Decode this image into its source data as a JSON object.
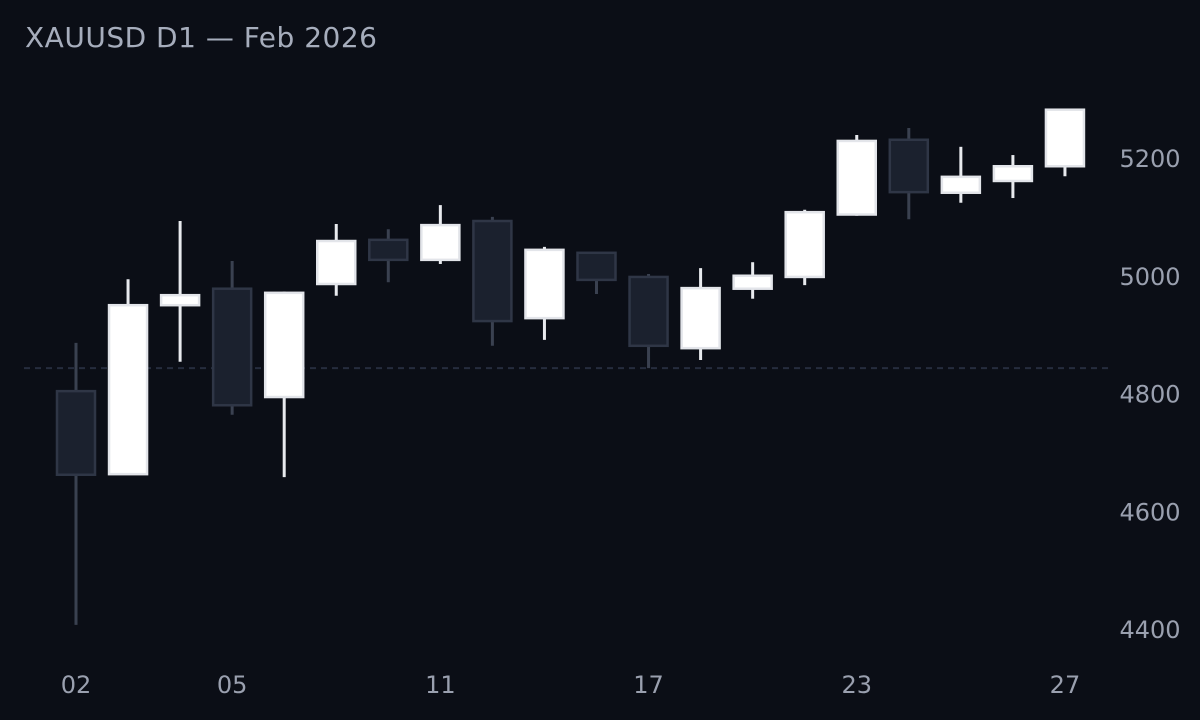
{
  "header": {
    "title": "XAUUSD D1 — Feb 2026"
  },
  "colors": {
    "background": "#0b0e16",
    "title_text": "#a6adbc",
    "axis_text": "#9aa0af",
    "bull_fill": "#ffffff",
    "bull_stroke": "#e3e5ea",
    "bull_wick": "#e8eaee",
    "bear_fill": "#1b212e",
    "bear_stroke": "#2f3646",
    "bear_wick": "#3a4150",
    "reference_line": "#262d3e"
  },
  "chart_data": {
    "type": "candlestick",
    "title": "XAUUSD D1 — Feb 2026",
    "symbol": "XAUUSD",
    "timeframe": "D1",
    "period": "Feb 2026",
    "grid": false,
    "y_axis_side": "right",
    "ylim": [
      4380,
      5320
    ],
    "y_ticks": [
      5200,
      5000,
      4800,
      4600,
      4400
    ],
    "reference_line": {
      "value": 4843,
      "style": "dashed"
    },
    "x_tick_labels": [
      {
        "label": "02",
        "index": 0
      },
      {
        "label": "05",
        "index": 3
      },
      {
        "label": "11",
        "index": 7
      },
      {
        "label": "17",
        "index": 11
      },
      {
        "label": "23",
        "index": 15
      },
      {
        "label": "27",
        "index": 19
      }
    ],
    "candles": [
      {
        "date": "02",
        "open": 4804,
        "high": 4886,
        "low": 4407,
        "close": 4662,
        "dir": "bear"
      },
      {
        "date": "03",
        "open": 4663,
        "high": 4994,
        "low": 4663,
        "close": 4950,
        "dir": "bull"
      },
      {
        "date": "04",
        "open": 4950,
        "high": 5093,
        "low": 4854,
        "close": 4967,
        "dir": "bull"
      },
      {
        "date": "05",
        "open": 4978,
        "high": 5025,
        "low": 4764,
        "close": 4780,
        "dir": "bear"
      },
      {
        "date": "06",
        "open": 4794,
        "high": 4973,
        "low": 4658,
        "close": 4971,
        "dir": "bull"
      },
      {
        "date": "09",
        "open": 4986,
        "high": 5088,
        "low": 4966,
        "close": 5059,
        "dir": "bull"
      },
      {
        "date": "10",
        "open": 5061,
        "high": 5079,
        "low": 4989,
        "close": 5027,
        "dir": "bear"
      },
      {
        "date": "11",
        "open": 5027,
        "high": 5120,
        "low": 5020,
        "close": 5086,
        "dir": "bull"
      },
      {
        "date": "12",
        "open": 5093,
        "high": 5100,
        "low": 4881,
        "close": 4923,
        "dir": "bear"
      },
      {
        "date": "13",
        "open": 4928,
        "high": 5049,
        "low": 4891,
        "close": 5044,
        "dir": "bull"
      },
      {
        "date": "16",
        "open": 5039,
        "high": 5040,
        "low": 4969,
        "close": 4993,
        "dir": "bear"
      },
      {
        "date": "17",
        "open": 4998,
        "high": 5003,
        "low": 4843,
        "close": 4881,
        "dir": "bear"
      },
      {
        "date": "18",
        "open": 4877,
        "high": 5013,
        "low": 4857,
        "close": 4979,
        "dir": "bull"
      },
      {
        "date": "19",
        "open": 4978,
        "high": 5023,
        "low": 4961,
        "close": 5000,
        "dir": "bull"
      },
      {
        "date": "20",
        "open": 4998,
        "high": 5112,
        "low": 4984,
        "close": 5108,
        "dir": "bull"
      },
      {
        "date": "23",
        "open": 5104,
        "high": 5239,
        "low": 5102,
        "close": 5229,
        "dir": "bull"
      },
      {
        "date": "24",
        "open": 5231,
        "high": 5251,
        "low": 5096,
        "close": 5142,
        "dir": "bear"
      },
      {
        "date": "25",
        "open": 5141,
        "high": 5219,
        "low": 5124,
        "close": 5168,
        "dir": "bull"
      },
      {
        "date": "26",
        "open": 5161,
        "high": 5205,
        "low": 5132,
        "close": 5186,
        "dir": "bull"
      },
      {
        "date": "27",
        "open": 5186,
        "high": 5284,
        "low": 5169,
        "close": 5282,
        "dir": "bull"
      }
    ]
  }
}
